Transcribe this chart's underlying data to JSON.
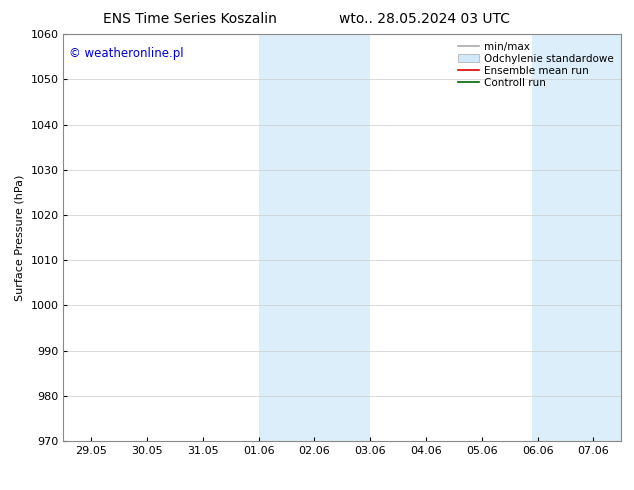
{
  "title_left": "ENS Time Series Koszalin",
  "title_right": "wto.. 28.05.2024 03 UTC",
  "ylabel": "Surface Pressure (hPa)",
  "ylim": [
    970,
    1060
  ],
  "yticks": [
    970,
    980,
    990,
    1000,
    1010,
    1020,
    1030,
    1040,
    1050,
    1060
  ],
  "xtick_labels": [
    "29.05",
    "30.05",
    "31.05",
    "01.06",
    "02.06",
    "03.06",
    "04.06",
    "05.06",
    "06.06",
    "07.06"
  ],
  "x_num_positions": [
    0,
    1,
    2,
    3,
    4,
    5,
    6,
    7,
    8,
    9
  ],
  "xlim": [
    -0.5,
    9.5
  ],
  "shaded_regions": [
    {
      "x_start": 3.0,
      "x_end": 5.0,
      "color": "#dceef9"
    },
    {
      "x_start": 7.9,
      "x_end": 9.5,
      "color": "#dceef9"
    }
  ],
  "watermark": "© weatheronline.pl",
  "watermark_color": "#0000cc",
  "legend_entries": [
    {
      "label": "min/max",
      "type": "line",
      "color": "#aaaaaa",
      "lw": 1.2
    },
    {
      "label": "Odchylenie standardowe",
      "type": "patch",
      "facecolor": "#d0e8f8",
      "edgecolor": "#aaaaaa",
      "lw": 0.5
    },
    {
      "label": "Ensemble mean run",
      "type": "line",
      "color": "#dd0000",
      "lw": 1.2
    },
    {
      "label": "Controll run",
      "type": "line",
      "color": "#006600",
      "lw": 1.2
    }
  ],
  "bg_color": "#ffffff",
  "grid_color": "#cccccc",
  "title_fontsize": 10,
  "tick_fontsize": 8,
  "ylabel_fontsize": 8,
  "legend_fontsize": 7.5
}
